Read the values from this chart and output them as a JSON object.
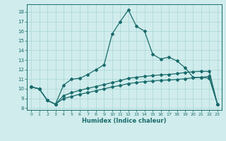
{
  "background_color": "#d0ecec",
  "grid_color": "#aad4d4",
  "line_color": "#1a6b6b",
  "xlabel": "Humidex (Indice chaleur)",
  "xlim": [
    -0.5,
    23.5
  ],
  "ylim": [
    7.8,
    18.8
  ],
  "yticks": [
    8,
    9,
    10,
    11,
    12,
    13,
    14,
    15,
    16,
    17,
    18
  ],
  "xticks": [
    0,
    1,
    2,
    3,
    4,
    5,
    6,
    7,
    8,
    9,
    10,
    11,
    12,
    13,
    14,
    15,
    16,
    17,
    18,
    19,
    20,
    21,
    22,
    23
  ],
  "line1_x": [
    0,
    1,
    2,
    3,
    4,
    5,
    6,
    7,
    8,
    9,
    10,
    11,
    12,
    13,
    14,
    15,
    16,
    17,
    18,
    19,
    20,
    21,
    22,
    23
  ],
  "line1_y": [
    10.2,
    10.0,
    8.8,
    8.4,
    10.4,
    11.0,
    11.1,
    11.5,
    12.0,
    12.5,
    15.7,
    17.0,
    18.2,
    16.5,
    16.0,
    13.6,
    13.1,
    13.3,
    12.9,
    12.2,
    11.2,
    11.2,
    11.1,
    8.4
  ],
  "line2_x": [
    0,
    1,
    2,
    3,
    4,
    5,
    6,
    7,
    8,
    9,
    10,
    11,
    12,
    13,
    14,
    15,
    16,
    17,
    18,
    19,
    20,
    21,
    22,
    23
  ],
  "line2_y": [
    10.2,
    10.0,
    8.8,
    8.4,
    9.0,
    9.2,
    9.45,
    9.6,
    9.8,
    10.0,
    10.2,
    10.35,
    10.55,
    10.65,
    10.75,
    10.82,
    10.88,
    10.92,
    10.97,
    11.05,
    11.15,
    11.2,
    11.3,
    8.4
  ],
  "line3_x": [
    0,
    1,
    2,
    3,
    4,
    5,
    6,
    7,
    8,
    9,
    10,
    11,
    12,
    13,
    14,
    15,
    16,
    17,
    18,
    19,
    20,
    21,
    22,
    23
  ],
  "line3_y": [
    10.2,
    10.0,
    8.8,
    8.4,
    9.3,
    9.6,
    9.85,
    10.05,
    10.25,
    10.45,
    10.65,
    10.85,
    11.1,
    11.2,
    11.3,
    11.38,
    11.45,
    11.5,
    11.58,
    11.7,
    11.78,
    11.82,
    11.8,
    8.4
  ],
  "marker": "D",
  "markersize": 2.0,
  "linewidth": 0.9
}
